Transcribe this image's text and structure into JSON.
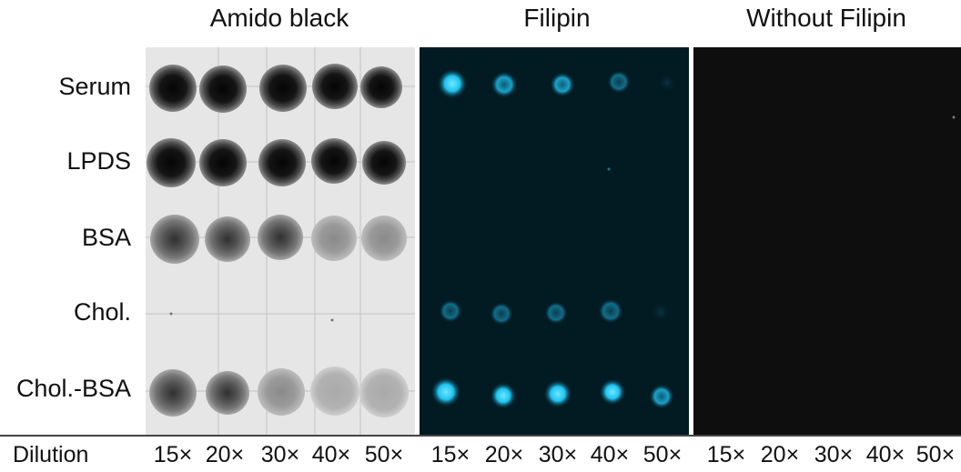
{
  "titles": {
    "amido": "Amido black",
    "filipin": "Filipin",
    "without": "Without Filipin"
  },
  "rows": [
    "Serum",
    "LPDS",
    "BSA",
    "Chol.",
    "Chol.-BSA"
  ],
  "dilution_label": "Dilution",
  "dilutions": [
    "15×",
    "20×",
    "30×",
    "40×",
    "50×"
  ],
  "colors": {
    "amido_bg": "#e8e8e8",
    "filipin_bg": "#021820",
    "filipin_spot": "#1ec8f0",
    "without_bg": "#0d0d0d"
  }
}
